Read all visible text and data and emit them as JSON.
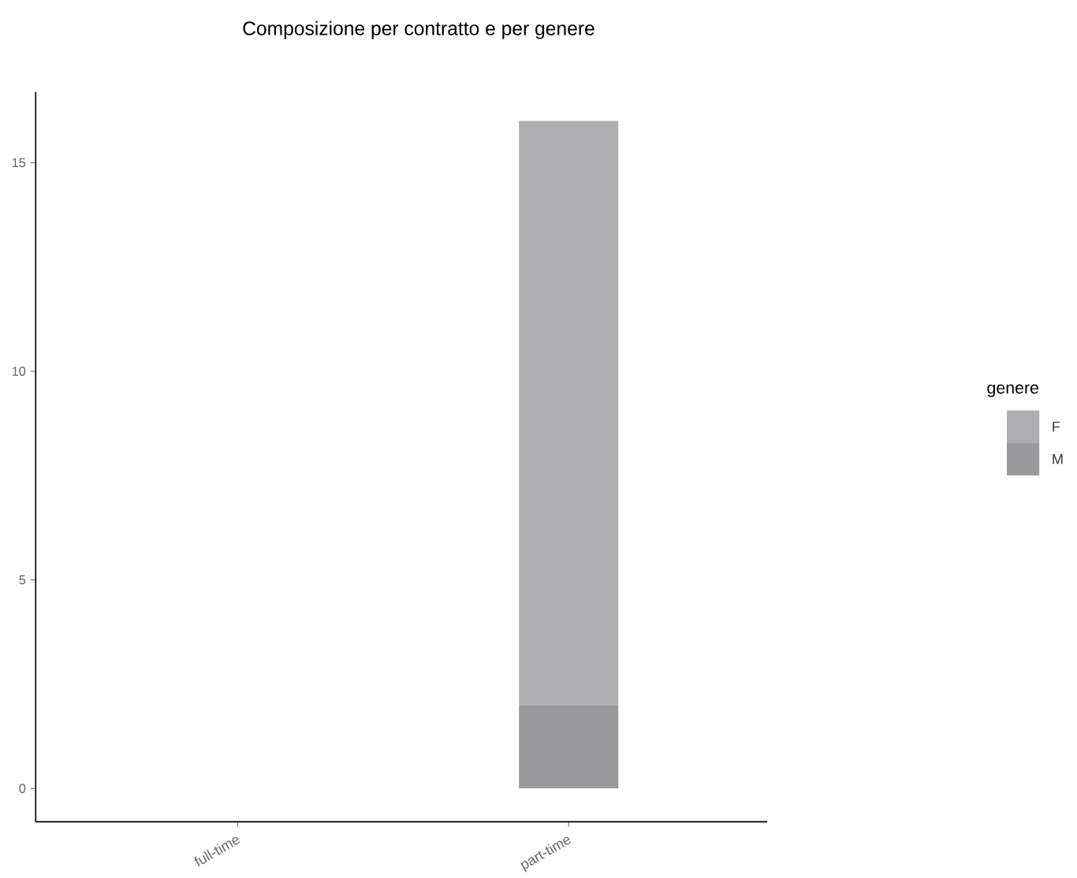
{
  "chart_data": {
    "type": "bar",
    "title": "Composizione per contratto e per genere",
    "categories": [
      "full-time",
      "part-time"
    ],
    "series": [
      {
        "name": "M",
        "color": "#9a9a9c",
        "values": [
          null,
          2
        ]
      },
      {
        "name": "F",
        "color": "#aeaeb0",
        "values": [
          null,
          14
        ]
      }
    ],
    "stacked": true,
    "ylim": [
      -0.8,
      16.7
    ],
    "yticks": [
      0,
      5,
      10,
      15
    ],
    "legend": "right",
    "legend_title": "genere",
    "grid": false
  }
}
